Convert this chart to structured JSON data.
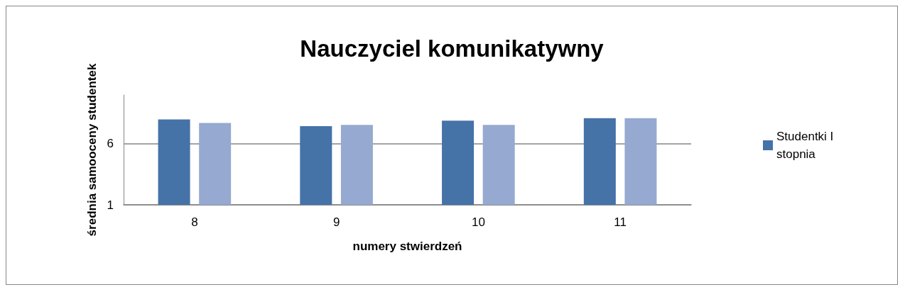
{
  "chart_data": {
    "type": "bar",
    "title": "Nauczyciel komunikatywny",
    "xlabel": "numery stwierdzeń",
    "ylabel": "średnia samooceny studentek",
    "categories": [
      "8",
      "9",
      "10",
      "11"
    ],
    "series": [
      {
        "name": "Studentki I stopnia",
        "color": "#4572a7",
        "values": [
          8.0,
          7.45,
          7.9,
          8.1
        ]
      },
      {
        "color": "#95a9d1",
        "values": [
          7.7,
          7.55,
          7.55,
          8.1
        ]
      }
    ],
    "ylim": [
      1,
      10
    ],
    "yticks": [
      1,
      6
    ],
    "grid": "y",
    "legend": "right"
  }
}
